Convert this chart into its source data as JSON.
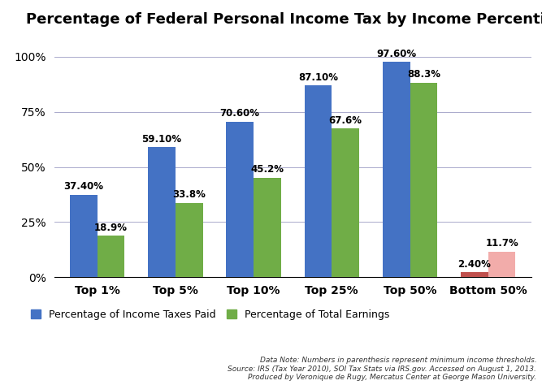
{
  "title": "Percentage of Federal Personal Income Tax by Income Percentile",
  "categories": [
    "Top 1%",
    "Top 5%",
    "Top 10%",
    "Top 25%",
    "Top 50%",
    "Bottom 50%"
  ],
  "blue_values": [
    37.4,
    59.1,
    70.6,
    87.1,
    97.6,
    2.4
  ],
  "green_values": [
    18.9,
    33.8,
    45.2,
    67.6,
    88.3,
    11.7
  ],
  "blue_labels": [
    "37.40%",
    "59.10%",
    "70.60%",
    "87.10%",
    "97.60%",
    "2.40%"
  ],
  "green_labels": [
    "18.9%",
    "33.8%",
    "45.2%",
    "67.6%",
    "88.3%",
    "11.7%"
  ],
  "blue_color_normal": "#4472C4",
  "green_color_normal": "#70AD47",
  "blue_color_bottom": "#C0504D",
  "green_color_bottom": "#F2ACAA",
  "legend_blue": "Percentage of Income Taxes Paid",
  "legend_green": "Percentage of Total Earnings",
  "footnote_line1": "Data Note: Numbers in parenthesis represent minimum income thresholds.",
  "footnote_line2": "Source: IRS (Tax Year 2010), SOI Tax Stats via IRS.gov. Accessed on August 1, 2013.",
  "footnote_line3": "Produced by Veronique de Rugy, Mercatus Center at George Mason University.",
  "ylim": [
    0,
    110
  ],
  "yticks": [
    0,
    25,
    50,
    75,
    100
  ],
  "ytick_labels": [
    "0%",
    "25%",
    "50%",
    "75%",
    "100%"
  ],
  "bar_width": 0.35,
  "background_color": "#FFFFFF"
}
